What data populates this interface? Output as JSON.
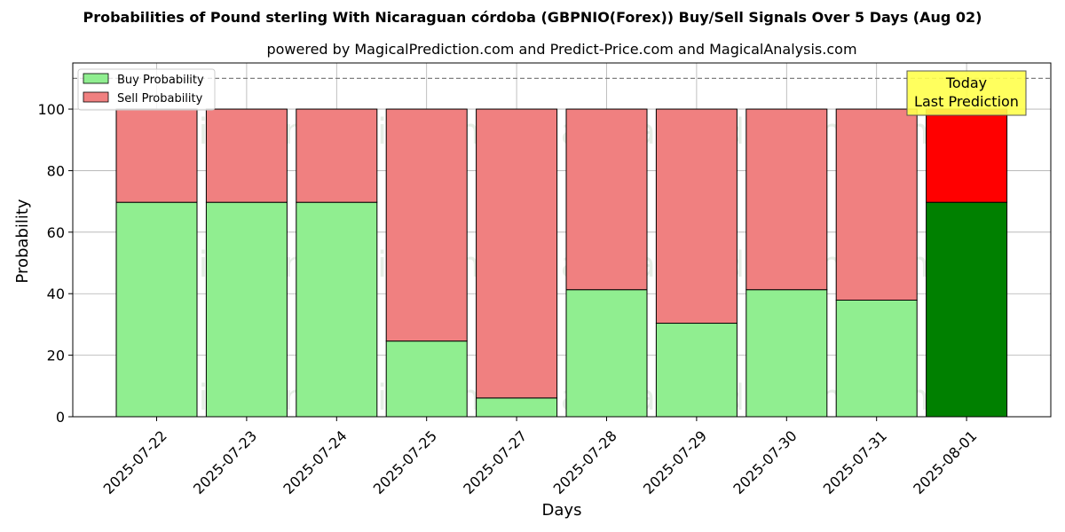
{
  "title": "Probabilities of Pound sterling With Nicaraguan córdoba (GBPNIO(Forex)) Buy/Sell Signals Over 5 Days (Aug 02)",
  "subtitle": "powered by MagicalPrediction.com and Predict-Price.com and MagicalAnalysis.com",
  "watermarks": [
    "MagicalAnalysis.com",
    "MagicalPrediction.com"
  ],
  "annotation": {
    "line1": "Today",
    "line2": "Last Prediction"
  },
  "colors": {
    "buy": "#90ee90",
    "sell": "#f08080",
    "buy_today": "#008000",
    "sell_today": "#ff0000",
    "annotation_bg": "#ffff4d"
  },
  "chart_data": {
    "type": "bar",
    "stacked": true,
    "xlabel": "Days",
    "ylabel": "Probability",
    "ylim": [
      0,
      115
    ],
    "yticks": [
      0,
      20,
      40,
      60,
      80,
      100
    ],
    "reference_line": 110,
    "grid": true,
    "legend_position": "top-left",
    "categories": [
      "2025-07-22",
      "2025-07-23",
      "2025-07-24",
      "2025-07-25",
      "2025-07-27",
      "2025-07-28",
      "2025-07-29",
      "2025-07-30",
      "2025-07-31",
      "2025-08-01"
    ],
    "series": [
      {
        "name": "Buy Probability",
        "values": [
          69.7,
          69.7,
          69.7,
          24.6,
          6.1,
          41.3,
          30.4,
          41.3,
          37.9,
          69.7
        ]
      },
      {
        "name": "Sell Probability",
        "values": [
          30.3,
          30.3,
          30.3,
          75.4,
          93.9,
          58.7,
          69.6,
          58.7,
          62.1,
          30.3
        ]
      }
    ]
  }
}
